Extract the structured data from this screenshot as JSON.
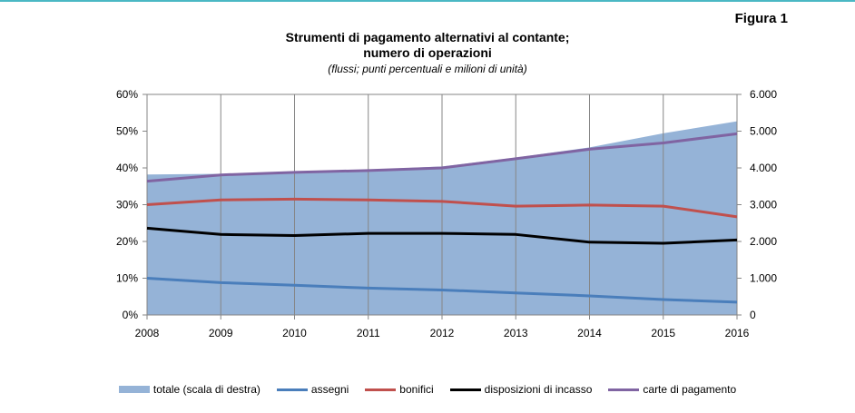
{
  "figure_label": "Figura 1",
  "chart_data": {
    "type": "line",
    "title": [
      "Strumenti di pagamento alternativi al contante;",
      "numero di operazioni"
    ],
    "subtitle": "(flussi; punti percentuali e milioni di unità)",
    "categories": [
      "2008",
      "2009",
      "2010",
      "2011",
      "2012",
      "2013",
      "2014",
      "2015",
      "2016"
    ],
    "left_axis": {
      "ticks": [
        "0%",
        "10%",
        "20%",
        "30%",
        "40%",
        "50%",
        "60%"
      ],
      "range": [
        0,
        60
      ]
    },
    "right_axis": {
      "ticks": [
        "0",
        "1.000",
        "2.000",
        "3.000",
        "4.000",
        "5.000",
        "6.000"
      ],
      "range": [
        0,
        6000
      ]
    },
    "grid": "vertical",
    "legend_position": "bottom",
    "series": [
      {
        "name": "totale (scala di destra)",
        "type": "area",
        "axis": "right",
        "color": "#95b3d7",
        "values": [
          3820,
          3840,
          3870,
          3950,
          4040,
          4280,
          4560,
          4940,
          5270
        ]
      },
      {
        "name": "assegni",
        "type": "line",
        "axis": "left",
        "color": "#4a7ebb",
        "values": [
          10.0,
          8.8,
          8.1,
          7.3,
          6.8,
          6.0,
          5.2,
          4.2,
          3.5
        ]
      },
      {
        "name": "bonifici",
        "type": "line",
        "axis": "left",
        "color": "#c0504d",
        "values": [
          30.0,
          31.3,
          31.5,
          31.3,
          30.9,
          29.6,
          29.9,
          29.6,
          26.7
        ]
      },
      {
        "name": "disposizioni di incasso",
        "type": "line",
        "axis": "left",
        "color": "#000000",
        "values": [
          23.6,
          21.9,
          21.6,
          22.2,
          22.2,
          21.9,
          19.8,
          19.5,
          20.4
        ]
      },
      {
        "name": "carte di pagamento",
        "type": "line",
        "axis": "left",
        "color": "#8064a2",
        "values": [
          36.4,
          38.1,
          38.8,
          39.3,
          40.0,
          42.5,
          45.1,
          46.8,
          49.3
        ]
      }
    ]
  }
}
